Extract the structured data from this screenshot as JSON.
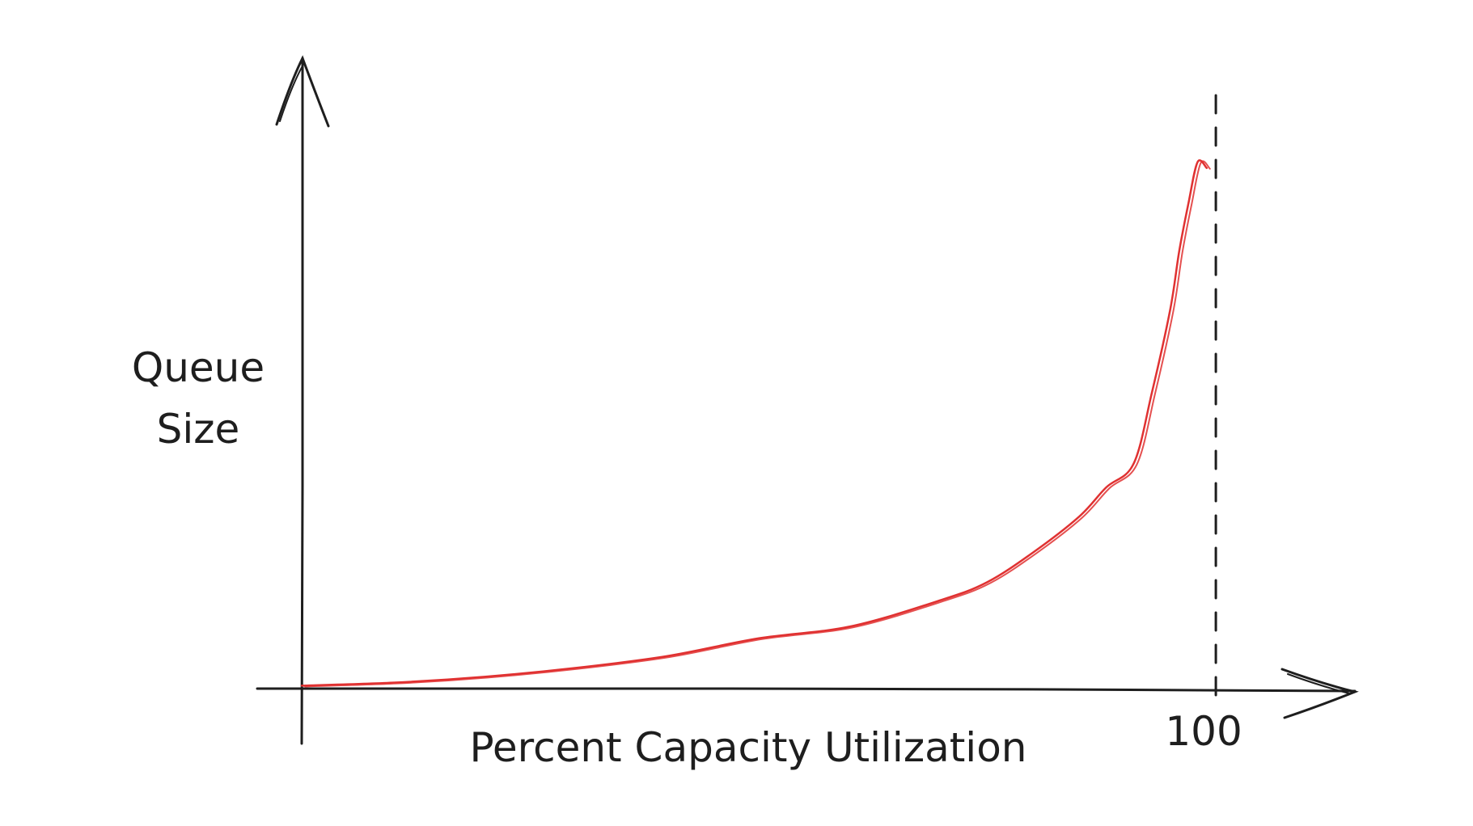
{
  "chart_data": {
    "type": "line",
    "title": "",
    "xlabel": "Percent Capacity Utilization",
    "ylabel_lines": [
      "Queue",
      "Size"
    ],
    "x_ticks": [
      {
        "value": 100,
        "label": "100"
      }
    ],
    "xlim": [
      0,
      113
    ],
    "ylim": [
      0,
      100
    ],
    "grid": false,
    "legend": "none",
    "reference_lines": [
      {
        "axis": "x",
        "value": 100,
        "style": "dashed"
      }
    ],
    "series": [
      {
        "color": "#e03131",
        "x": [
          0,
          10,
          20,
          30,
          40,
          50,
          60,
          70,
          75,
          80,
          85,
          88,
          91,
          93,
          95,
          96,
          97,
          98,
          99
        ],
        "y": [
          0.5,
          1,
          2,
          3.5,
          5.5,
          8.5,
          10.5,
          15,
          18,
          23,
          29,
          34,
          38,
          50,
          64,
          74,
          82,
          89,
          88
        ]
      }
    ]
  },
  "colors": {
    "ink": "#1e1e1e",
    "curve": "#e03131",
    "background": "#ffffff"
  }
}
